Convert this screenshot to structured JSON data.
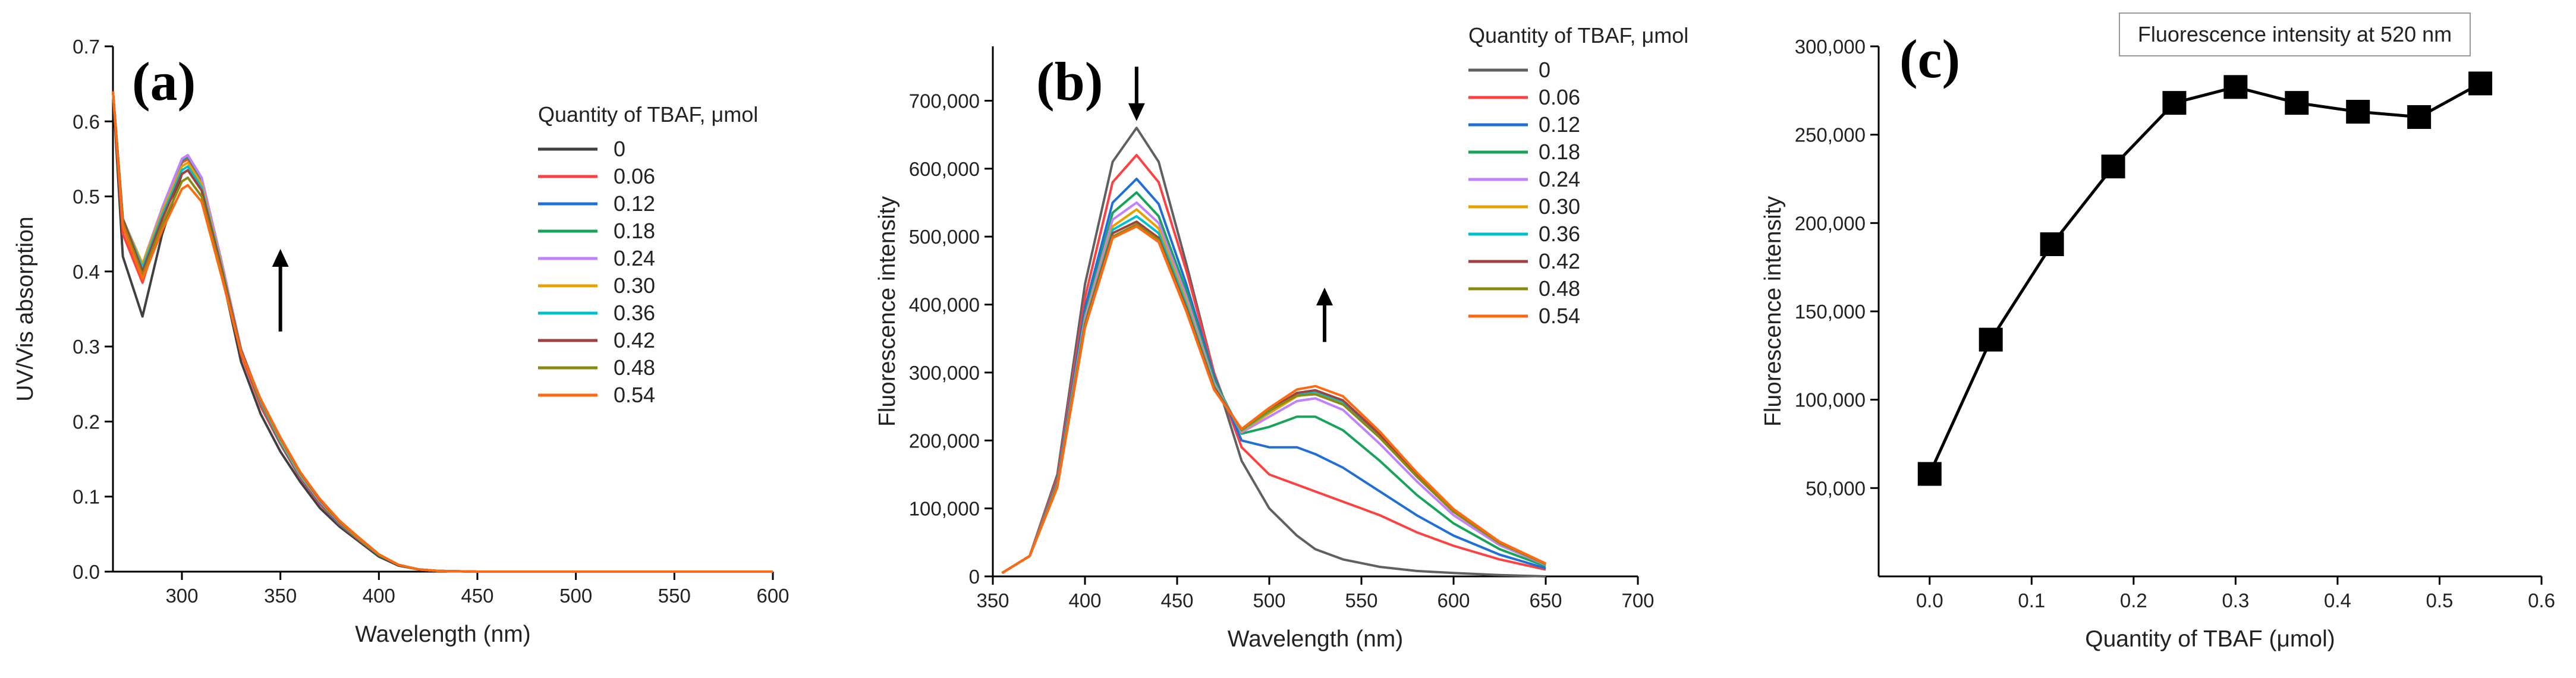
{
  "chart_data": [
    {
      "id": "a",
      "type": "line",
      "panel_label": "(a)",
      "xlabel": "Wavelength (nm)",
      "ylabel": "UV/Vis absorption",
      "xlim": [
        265,
        600
      ],
      "ylim": [
        0,
        0.7
      ],
      "xticks": [
        300,
        350,
        400,
        450,
        500,
        550,
        600
      ],
      "xtick_labels": [
        "300",
        "350",
        "400",
        "450",
        "500",
        "550",
        "600"
      ],
      "yticks": [
        0,
        0.1,
        0.2,
        0.3,
        0.4,
        0.5,
        0.6,
        0.7
      ],
      "ytick_labels": [
        "0.0",
        "0.1",
        "0.2",
        "0.3",
        "0.4",
        "0.5",
        "0.6",
        "0.7"
      ],
      "legend_title": "Quantity of TBAF, μmol",
      "annotation": "up-arrow",
      "x": [
        265,
        270,
        280,
        290,
        300,
        303,
        310,
        320,
        330,
        340,
        350,
        360,
        370,
        380,
        390,
        400,
        410,
        420,
        430,
        450,
        600
      ],
      "series": [
        {
          "name": "0",
          "color": "#404040",
          "values": [
            0.64,
            0.42,
            0.34,
            0.45,
            0.53,
            0.535,
            0.51,
            0.4,
            0.28,
            0.21,
            0.16,
            0.12,
            0.085,
            0.06,
            0.04,
            0.02,
            0.008,
            0.003,
            0.001,
            0,
            0
          ]
        },
        {
          "name": "0.06",
          "color": "#ff4040",
          "values": [
            0.64,
            0.45,
            0.385,
            0.47,
            0.545,
            0.55,
            0.52,
            0.41,
            0.29,
            0.22,
            0.17,
            0.125,
            0.09,
            0.063,
            0.042,
            0.022,
            0.009,
            0.003,
            0.001,
            0,
            0
          ]
        },
        {
          "name": "0.12",
          "color": "#1f6fd6",
          "values": [
            0.64,
            0.46,
            0.4,
            0.48,
            0.55,
            0.555,
            0.525,
            0.415,
            0.295,
            0.225,
            0.172,
            0.127,
            0.092,
            0.064,
            0.043,
            0.022,
            0.009,
            0.003,
            0.001,
            0,
            0
          ]
        },
        {
          "name": "0.18",
          "color": "#17a35a",
          "values": [
            0.64,
            0.47,
            0.405,
            0.48,
            0.548,
            0.553,
            0.523,
            0.413,
            0.295,
            0.225,
            0.173,
            0.128,
            0.093,
            0.065,
            0.043,
            0.022,
            0.009,
            0.003,
            0.001,
            0,
            0
          ]
        },
        {
          "name": "0.24",
          "color": "#c080ff",
          "values": [
            0.64,
            0.47,
            0.41,
            0.485,
            0.55,
            0.555,
            0.525,
            0.415,
            0.297,
            0.227,
            0.175,
            0.129,
            0.094,
            0.066,
            0.044,
            0.023,
            0.009,
            0.003,
            0.001,
            0,
            0
          ]
        },
        {
          "name": "0.30",
          "color": "#e8a000",
          "values": [
            0.64,
            0.47,
            0.41,
            0.48,
            0.54,
            0.545,
            0.517,
            0.41,
            0.295,
            0.228,
            0.176,
            0.13,
            0.095,
            0.066,
            0.044,
            0.023,
            0.009,
            0.003,
            0.001,
            0,
            0
          ]
        },
        {
          "name": "0.36",
          "color": "#00c0d0",
          "values": [
            0.64,
            0.47,
            0.405,
            0.475,
            0.535,
            0.54,
            0.512,
            0.407,
            0.295,
            0.228,
            0.177,
            0.131,
            0.096,
            0.067,
            0.045,
            0.023,
            0.009,
            0.003,
            0.001,
            0,
            0
          ]
        },
        {
          "name": "0.42",
          "color": "#a04040",
          "values": [
            0.64,
            0.47,
            0.4,
            0.47,
            0.53,
            0.535,
            0.508,
            0.405,
            0.295,
            0.229,
            0.178,
            0.132,
            0.096,
            0.067,
            0.045,
            0.023,
            0.009,
            0.003,
            0.001,
            0,
            0
          ]
        },
        {
          "name": "0.48",
          "color": "#8a8a10",
          "values": [
            0.64,
            0.465,
            0.395,
            0.462,
            0.52,
            0.525,
            0.5,
            0.4,
            0.293,
            0.229,
            0.178,
            0.132,
            0.097,
            0.068,
            0.045,
            0.023,
            0.009,
            0.003,
            0.001,
            0,
            0
          ]
        },
        {
          "name": "0.54",
          "color": "#ff6a10",
          "values": [
            0.64,
            0.46,
            0.39,
            0.455,
            0.51,
            0.515,
            0.493,
            0.395,
            0.292,
            0.23,
            0.179,
            0.133,
            0.097,
            0.068,
            0.045,
            0.023,
            0.009,
            0.003,
            0.001,
            0,
            0
          ]
        }
      ]
    },
    {
      "id": "b",
      "type": "line",
      "panel_label": "(b)",
      "xlabel": "Wavelength (nm)",
      "ylabel": "Fluorescence intensity",
      "xlim": [
        350,
        700
      ],
      "ylim": [
        0,
        780000
      ],
      "xticks": [
        350,
        400,
        450,
        500,
        550,
        600,
        650,
        700
      ],
      "xtick_labels": [
        "350",
        "400",
        "450",
        "500",
        "550",
        "600",
        "650",
        "700"
      ],
      "yticks": [
        0,
        100000,
        200000,
        300000,
        400000,
        500000,
        600000,
        700000
      ],
      "ytick_labels": [
        "0",
        "100,000",
        "200,000",
        "300,000",
        "400,000",
        "500,000",
        "600,000",
        "700,000"
      ],
      "legend_title": "Quantity of TBAF, μmol",
      "annotations": [
        "down-arrow",
        "up-arrow"
      ],
      "x": [
        355,
        370,
        385,
        400,
        415,
        428,
        440,
        455,
        470,
        485,
        500,
        515,
        525,
        540,
        560,
        580,
        600,
        625,
        650
      ],
      "series": [
        {
          "name": "0",
          "color": "#606060",
          "values": [
            5000,
            30000,
            150000,
            430000,
            610000,
            660000,
            610000,
            460000,
            300000,
            170000,
            100000,
            60000,
            40000,
            25000,
            14000,
            8000,
            5000,
            2000,
            0
          ]
        },
        {
          "name": "0.06",
          "color": "#ff4040",
          "values": [
            5000,
            30000,
            145000,
            410000,
            580000,
            620000,
            580000,
            450000,
            300000,
            190000,
            150000,
            135000,
            125000,
            110000,
            90000,
            65000,
            45000,
            25000,
            10000
          ]
        },
        {
          "name": "0.12",
          "color": "#1f6fd6",
          "values": [
            5000,
            30000,
            140000,
            395000,
            550000,
            585000,
            548000,
            430000,
            295000,
            200000,
            190000,
            190000,
            180000,
            160000,
            125000,
            90000,
            60000,
            32000,
            12000
          ]
        },
        {
          "name": "0.18",
          "color": "#17a35a",
          "values": [
            5000,
            30000,
            138000,
            385000,
            535000,
            565000,
            530000,
            420000,
            290000,
            210000,
            220000,
            235000,
            235000,
            215000,
            170000,
            120000,
            78000,
            40000,
            15000
          ]
        },
        {
          "name": "0.24",
          "color": "#c080ff",
          "values": [
            5000,
            30000,
            136000,
            380000,
            525000,
            550000,
            520000,
            412000,
            285000,
            212000,
            235000,
            258000,
            262000,
            245000,
            195000,
            140000,
            90000,
            46000,
            17000
          ]
        },
        {
          "name": "0.30",
          "color": "#e8a000",
          "values": [
            5000,
            30000,
            135000,
            375000,
            515000,
            540000,
            512000,
            405000,
            282000,
            214000,
            240000,
            265000,
            270000,
            255000,
            205000,
            147000,
            95000,
            49000,
            18000
          ]
        },
        {
          "name": "0.36",
          "color": "#00c0d0",
          "values": [
            5000,
            30000,
            134000,
            372000,
            510000,
            530000,
            505000,
            400000,
            280000,
            215000,
            243000,
            268000,
            272000,
            257000,
            207000,
            149000,
            96000,
            50000,
            18000
          ]
        },
        {
          "name": "0.42",
          "color": "#a04040",
          "values": [
            5000,
            30000,
            133000,
            370000,
            505000,
            522000,
            498000,
            395000,
            278000,
            216000,
            245000,
            270000,
            274000,
            259000,
            209000,
            150000,
            97000,
            50000,
            19000
          ]
        },
        {
          "name": "0.48",
          "color": "#8a8a10",
          "values": [
            5000,
            30000,
            132000,
            368000,
            500000,
            518000,
            495000,
            392000,
            276000,
            216000,
            244000,
            266000,
            268000,
            253000,
            204000,
            147000,
            95000,
            49000,
            18000
          ]
        },
        {
          "name": "0.54",
          "color": "#ff6a10",
          "values": [
            5000,
            30000,
            131000,
            366000,
            498000,
            515000,
            492000,
            390000,
            275000,
            217000,
            248000,
            275000,
            280000,
            265000,
            213000,
            153000,
            99000,
            51000,
            19000
          ]
        }
      ]
    },
    {
      "id": "c",
      "type": "scatter",
      "panel_label": "(c)",
      "title": "Fluorescence intensity at 520 nm",
      "xlabel": "Quantity of TBAF (μmol)",
      "ylabel": "Fluorescence intensity",
      "xlim": [
        -0.05,
        0.6
      ],
      "ylim": [
        0,
        300000
      ],
      "xticks": [
        0,
        0.1,
        0.2,
        0.3,
        0.4,
        0.5,
        0.6
      ],
      "xtick_labels": [
        "0.0",
        "0.1",
        "0.2",
        "0.3",
        "0.4",
        "0.5",
        "0.6"
      ],
      "yticks": [
        50000,
        100000,
        150000,
        200000,
        250000,
        300000
      ],
      "ytick_labels": [
        "50,000",
        "100,000",
        "150,000",
        "200,000",
        "250,000",
        "300,000"
      ],
      "x": [
        0,
        0.06,
        0.12,
        0.18,
        0.24,
        0.3,
        0.36,
        0.42,
        0.48,
        0.54
      ],
      "values": [
        58000,
        134000,
        188000,
        232000,
        268000,
        277000,
        268000,
        263000,
        260000,
        279000
      ],
      "marker": "square",
      "color": "#000000"
    }
  ]
}
